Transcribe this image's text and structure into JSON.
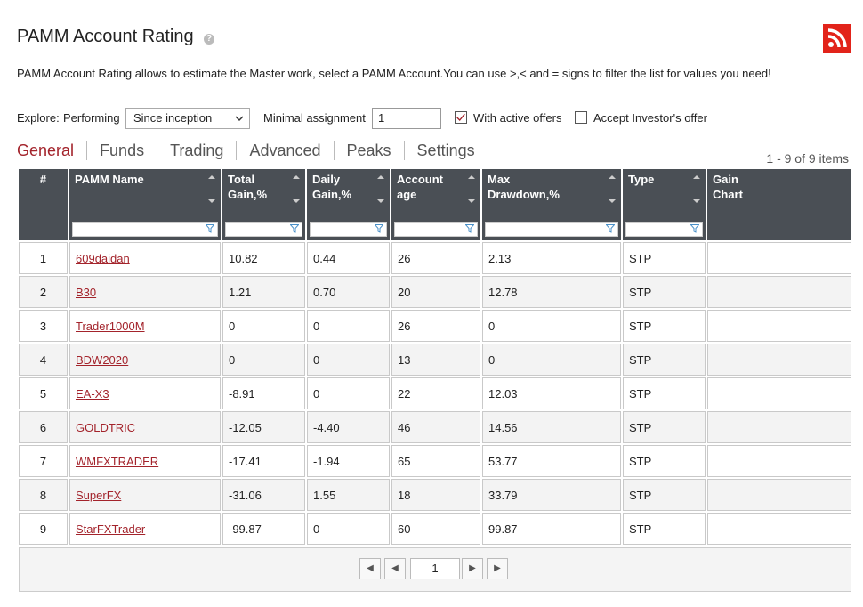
{
  "header": {
    "title": "PAMM Account Rating"
  },
  "description": "PAMM Account Rating allows to estimate the Master work, select a PAMM Account.You can use >,< and = signs to filter the list for values you need!",
  "filters": {
    "explore_label": "Explore:",
    "performing_label": "Performing",
    "period": "Since inception",
    "minimal_label": "Minimal assignment",
    "minimal_value": "1",
    "active_offers": "With active offers",
    "investor_offer": "Accept Investor's offer"
  },
  "tabs": [
    "General",
    "Funds",
    "Trading",
    "Advanced",
    "Peaks",
    "Settings"
  ],
  "items_count": "1 - 9 of 9 items",
  "table": {
    "columns": [
      "#",
      "PAMM Name",
      "Total\nGain,%",
      "Daily\nGain,%",
      "Account\nage",
      "Max\nDrawdown,%",
      "Type",
      "Gain\nChart"
    ],
    "rows": [
      [
        "1",
        "609daidan",
        "10.82",
        "0.44",
        "26",
        "2.13",
        "STP"
      ],
      [
        "2",
        "B30",
        "1.21",
        "0.70",
        "20",
        "12.78",
        "STP"
      ],
      [
        "3",
        "Trader1000M",
        "0",
        "0",
        "26",
        "0",
        "STP"
      ],
      [
        "4",
        "BDW2020",
        "0",
        "0",
        "13",
        "0",
        "STP"
      ],
      [
        "5",
        "EA-X3",
        "-8.91",
        "0",
        "22",
        "12.03",
        "STP"
      ],
      [
        "6",
        "GOLDTRIC",
        "-12.05",
        "-4.40",
        "46",
        "14.56",
        "STP"
      ],
      [
        "7",
        "WMFXTRADER",
        "-17.41",
        "-1.94",
        "65",
        "53.77",
        "STP"
      ],
      [
        "8",
        "SuperFX",
        "-31.06",
        "1.55",
        "18",
        "33.79",
        "STP"
      ],
      [
        "9",
        "StarFXTrader",
        "-99.87",
        "0",
        "60",
        "99.87",
        "STP"
      ]
    ]
  },
  "pager": {
    "page": "1"
  }
}
